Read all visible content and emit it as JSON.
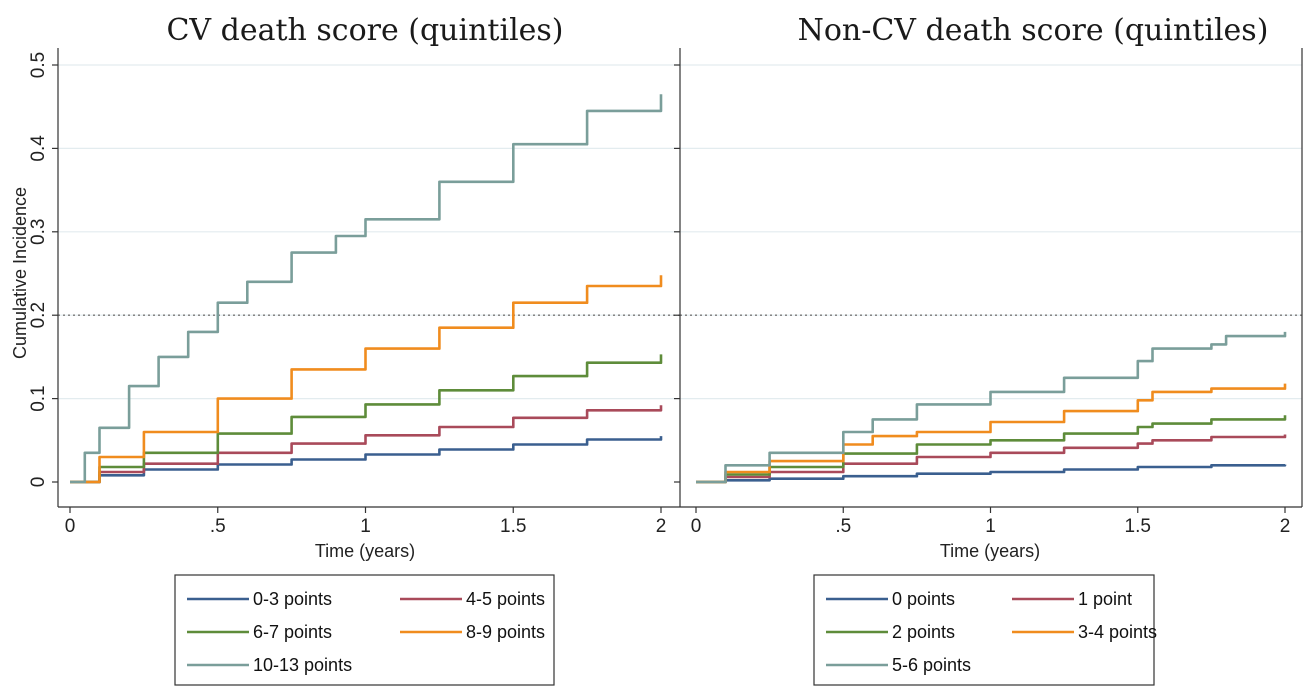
{
  "chart_data": [
    {
      "type": "line",
      "title": "CV death score (quintiles)",
      "xlabel": "Time (years)",
      "ylabel": "Cumulative Incidence",
      "xlim": [
        0,
        2
      ],
      "ylim": [
        0,
        0.5
      ],
      "x_ticks": [
        {
          "v": 0,
          "label": "0"
        },
        {
          "v": 0.5,
          "label": ".5"
        },
        {
          "v": 1,
          "label": "1"
        },
        {
          "v": 1.5,
          "label": "1.5"
        },
        {
          "v": 2,
          "label": "2"
        }
      ],
      "y_ticks": [
        {
          "v": 0,
          "label": "0"
        },
        {
          "v": 0.1,
          "label": "0.1"
        },
        {
          "v": 0.2,
          "label": "0.2"
        },
        {
          "v": 0.3,
          "label": "0.3"
        },
        {
          "v": 0.4,
          "label": "0.4"
        },
        {
          "v": 0.5,
          "label": "0.5"
        }
      ],
      "reference_line_y": 0.2,
      "grid": true,
      "legend_position": "bottom",
      "series": [
        {
          "name": "0-3 points",
          "color": "#3a5f8f",
          "x": [
            0,
            0.1,
            0.25,
            0.5,
            0.75,
            1,
            1.25,
            1.5,
            1.75,
            2
          ],
          "y": [
            0,
            0.008,
            0.015,
            0.021,
            0.027,
            0.033,
            0.039,
            0.045,
            0.051,
            0.055
          ]
        },
        {
          "name": "4-5 points",
          "color": "#a94a5a",
          "x": [
            0,
            0.1,
            0.25,
            0.5,
            0.75,
            1,
            1.25,
            1.5,
            1.75,
            2
          ],
          "y": [
            0,
            0.012,
            0.022,
            0.035,
            0.046,
            0.056,
            0.066,
            0.077,
            0.086,
            0.092
          ]
        },
        {
          "name": "6-7 points",
          "color": "#5e8c3a",
          "x": [
            0,
            0.1,
            0.25,
            0.5,
            0.75,
            1,
            1.25,
            1.5,
            1.75,
            2
          ],
          "y": [
            0,
            0.018,
            0.035,
            0.058,
            0.078,
            0.093,
            0.11,
            0.127,
            0.143,
            0.153
          ]
        },
        {
          "name": "8-9 points",
          "color": "#f08c1e",
          "x": [
            0,
            0.1,
            0.25,
            0.5,
            0.75,
            1,
            1.25,
            1.5,
            1.75,
            2
          ],
          "y": [
            0,
            0.03,
            0.06,
            0.1,
            0.135,
            0.16,
            0.185,
            0.215,
            0.235,
            0.248
          ]
        },
        {
          "name": "10-13 points",
          "color": "#7a9e9a",
          "x": [
            0,
            0.05,
            0.1,
            0.2,
            0.3,
            0.4,
            0.5,
            0.6,
            0.75,
            0.9,
            1,
            1.25,
            1.5,
            1.75,
            2
          ],
          "y": [
            0,
            0.035,
            0.065,
            0.115,
            0.15,
            0.18,
            0.215,
            0.24,
            0.275,
            0.295,
            0.315,
            0.36,
            0.405,
            0.445,
            0.465
          ]
        }
      ],
      "legend_items": [
        {
          "name": "0-3 points",
          "color": "#3a5f8f"
        },
        {
          "name": "4-5 points",
          "color": "#a94a5a"
        },
        {
          "name": "6-7 points",
          "color": "#5e8c3a"
        },
        {
          "name": "8-9 points",
          "color": "#f08c1e"
        },
        {
          "name": "10-13 points",
          "color": "#7a9e9a"
        }
      ]
    },
    {
      "type": "line",
      "title": "Non-CV death score (quintiles)",
      "xlabel": "Time (years)",
      "ylabel": "",
      "xlim": [
        0,
        2
      ],
      "ylim": [
        0,
        0.5
      ],
      "x_ticks": [
        {
          "v": 0,
          "label": "0"
        },
        {
          "v": 0.5,
          "label": ".5"
        },
        {
          "v": 1,
          "label": "1"
        },
        {
          "v": 1.5,
          "label": "1.5"
        },
        {
          "v": 2,
          "label": "2"
        }
      ],
      "y_ticks": [],
      "reference_line_y": 0.2,
      "grid": true,
      "legend_position": "bottom",
      "series": [
        {
          "name": "0 points",
          "color": "#3a5f8f",
          "x": [
            0,
            0.1,
            0.25,
            0.5,
            0.75,
            1,
            1.25,
            1.5,
            1.75,
            2
          ],
          "y": [
            0,
            0.002,
            0.004,
            0.007,
            0.01,
            0.012,
            0.015,
            0.018,
            0.02,
            0.021
          ]
        },
        {
          "name": "1 point",
          "color": "#a94a5a",
          "x": [
            0,
            0.1,
            0.25,
            0.5,
            0.75,
            1,
            1.25,
            1.5,
            1.55,
            1.75,
            2
          ],
          "y": [
            0,
            0.006,
            0.012,
            0.022,
            0.03,
            0.035,
            0.041,
            0.046,
            0.05,
            0.054,
            0.057
          ]
        },
        {
          "name": "2 points",
          "color": "#5e8c3a",
          "x": [
            0,
            0.1,
            0.25,
            0.5,
            0.75,
            1,
            1.25,
            1.5,
            1.55,
            1.75,
            2
          ],
          "y": [
            0,
            0.009,
            0.018,
            0.034,
            0.045,
            0.05,
            0.058,
            0.066,
            0.07,
            0.075,
            0.08
          ]
        },
        {
          "name": "3-4 points",
          "color": "#f08c1e",
          "x": [
            0,
            0.1,
            0.25,
            0.5,
            0.6,
            0.75,
            1,
            1.25,
            1.5,
            1.55,
            1.75,
            2
          ],
          "y": [
            0,
            0.012,
            0.025,
            0.045,
            0.055,
            0.06,
            0.072,
            0.085,
            0.098,
            0.108,
            0.112,
            0.118
          ]
        },
        {
          "name": "5-6 points",
          "color": "#7a9e9a",
          "x": [
            0,
            0.1,
            0.25,
            0.5,
            0.6,
            0.75,
            1,
            1.25,
            1.5,
            1.55,
            1.75,
            1.8,
            2
          ],
          "y": [
            0,
            0.02,
            0.035,
            0.06,
            0.075,
            0.093,
            0.108,
            0.125,
            0.145,
            0.16,
            0.165,
            0.175,
            0.18
          ]
        }
      ],
      "legend_items": [
        {
          "name": "0 points",
          "color": "#3a5f8f"
        },
        {
          "name": "1 point",
          "color": "#a94a5a"
        },
        {
          "name": "2 points",
          "color": "#5e8c3a"
        },
        {
          "name": "3-4 points",
          "color": "#f08c1e"
        },
        {
          "name": "5-6 points",
          "color": "#7a9e9a"
        }
      ]
    }
  ]
}
